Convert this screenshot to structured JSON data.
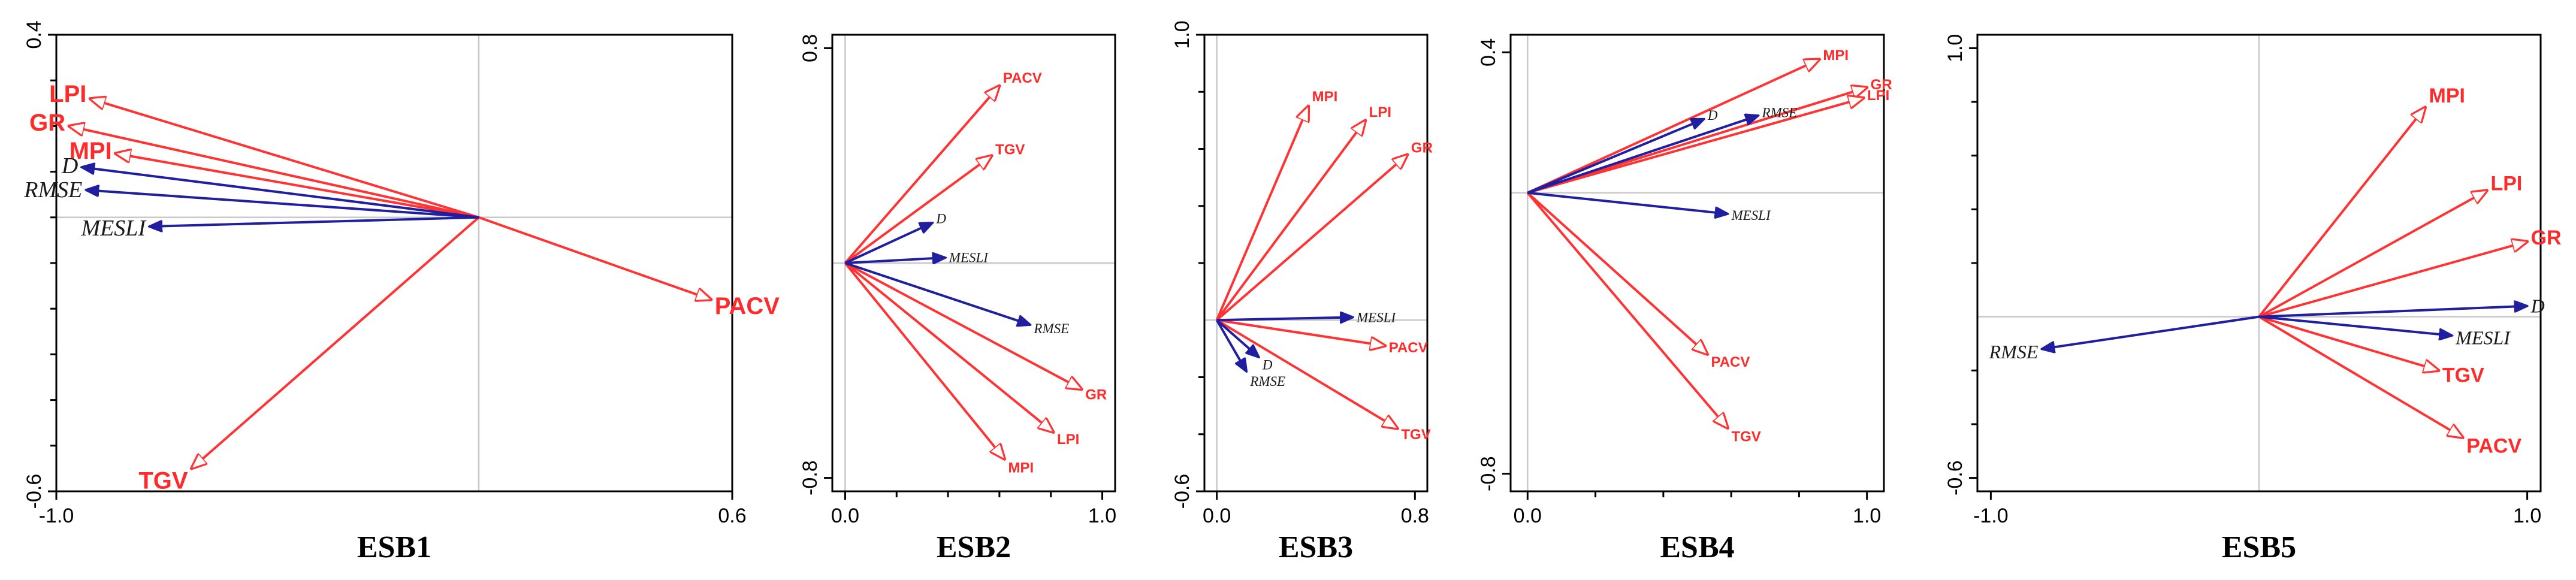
{
  "colors": {
    "response": "#ff2a2a",
    "explanatory": "#1f1fa0",
    "zero_line": "#c8c8c8"
  },
  "chart_data": [
    {
      "type": "biplot",
      "title": "ESB1",
      "xlim": [
        -1.0,
        0.6
      ],
      "ylim": [
        -0.6,
        0.4
      ],
      "xticks": [
        -1.0,
        0.6
      ],
      "xtick_labels": [
        "-1.0",
        "0.6"
      ],
      "yticks": [
        0.4,
        -0.6
      ],
      "ytick_labels": [
        "0.4",
        "-0.6"
      ],
      "minor_yticks": [
        0.3,
        0.2,
        0.1,
        0.0,
        -0.1,
        -0.2,
        -0.3,
        -0.4,
        -0.5
      ],
      "vectors": [
        {
          "name": "LPI",
          "group": "response",
          "x": -0.92,
          "y": 0.26
        },
        {
          "name": "GR",
          "group": "response",
          "x": -0.97,
          "y": 0.2
        },
        {
          "name": "MPI",
          "group": "response",
          "x": -0.86,
          "y": 0.14
        },
        {
          "name": "PACV",
          "group": "response",
          "x": 0.55,
          "y": -0.18
        },
        {
          "name": "TGV",
          "group": "response",
          "x": -0.68,
          "y": -0.55
        },
        {
          "name": "D",
          "group": "explanatory",
          "x": -0.94,
          "y": 0.11
        },
        {
          "name": "RMSE",
          "group": "explanatory",
          "x": -0.93,
          "y": 0.06
        },
        {
          "name": "MESLI",
          "group": "explanatory",
          "x": -0.78,
          "y": -0.02
        }
      ]
    },
    {
      "type": "biplot",
      "title": "ESB2",
      "xlim": [
        -0.05,
        1.05
      ],
      "ylim": [
        -0.85,
        0.85
      ],
      "xticks": [
        0.0,
        1.0
      ],
      "xtick_labels": [
        "0.0",
        "1.0"
      ],
      "yticks": [
        0.8,
        -0.8
      ],
      "ytick_labels": [
        "0.8",
        "-0.8"
      ],
      "minor_xticks": [
        0.2,
        0.4,
        0.6,
        0.8
      ],
      "vectors": [
        {
          "name": "PACV",
          "group": "response",
          "x": 0.6,
          "y": 0.66
        },
        {
          "name": "TGV",
          "group": "response",
          "x": 0.57,
          "y": 0.4
        },
        {
          "name": "GR",
          "group": "response",
          "x": 0.92,
          "y": -0.47
        },
        {
          "name": "LPI",
          "group": "response",
          "x": 0.81,
          "y": -0.63
        },
        {
          "name": "MPI",
          "group": "response",
          "x": 0.62,
          "y": -0.73
        },
        {
          "name": "D",
          "group": "explanatory",
          "x": 0.34,
          "y": 0.15
        },
        {
          "name": "MESLI",
          "group": "explanatory",
          "x": 0.39,
          "y": 0.02
        },
        {
          "name": "RMSE",
          "group": "explanatory",
          "x": 0.72,
          "y": -0.23
        }
      ]
    },
    {
      "type": "biplot",
      "title": "ESB3",
      "xlim": [
        -0.05,
        0.85
      ],
      "ylim": [
        -0.6,
        1.0
      ],
      "xticks": [
        0.0,
        0.8
      ],
      "xtick_labels": [
        "0.0",
        "0.8"
      ],
      "yticks": [
        1.0,
        -0.6
      ],
      "ytick_labels": [
        "1.0",
        "-0.6"
      ],
      "minor_yticks": [
        0.8,
        0.6,
        0.4,
        0.2,
        -0.2,
        -0.4
      ],
      "vectors": [
        {
          "name": "MPI",
          "group": "response",
          "x": 0.37,
          "y": 0.75
        },
        {
          "name": "LPI",
          "group": "response",
          "x": 0.6,
          "y": 0.7
        },
        {
          "name": "GR",
          "group": "response",
          "x": 0.77,
          "y": 0.58
        },
        {
          "name": "PACV",
          "group": "response",
          "x": 0.68,
          "y": -0.09
        },
        {
          "name": "TGV",
          "group": "response",
          "x": 0.73,
          "y": -0.38
        },
        {
          "name": "MESLI",
          "group": "explanatory",
          "x": 0.55,
          "y": 0.01
        },
        {
          "name": "RMSE",
          "group": "explanatory",
          "x": 0.12,
          "y": -0.18
        },
        {
          "name": "D",
          "group": "explanatory",
          "x": 0.17,
          "y": -0.13
        }
      ]
    },
    {
      "type": "biplot",
      "title": "ESB4",
      "xlim": [
        -0.05,
        1.05
      ],
      "ylim": [
        -0.85,
        0.45
      ],
      "xticks": [
        0.0,
        1.0
      ],
      "xtick_labels": [
        "0.0",
        "1.0"
      ],
      "yticks": [
        0.4,
        -0.8
      ],
      "ytick_labels": [
        "0.4",
        "-0.8"
      ],
      "minor_xticks": [
        0.2,
        0.4,
        0.6,
        0.8
      ],
      "vectors": [
        {
          "name": "MPI",
          "group": "response",
          "x": 0.86,
          "y": 0.38
        },
        {
          "name": "GR",
          "group": "response",
          "x": 1.0,
          "y": 0.3
        },
        {
          "name": "LPI",
          "group": "response",
          "x": 0.99,
          "y": 0.27
        },
        {
          "name": "PACV",
          "group": "response",
          "x": 0.53,
          "y": -0.46
        },
        {
          "name": "TGV",
          "group": "response",
          "x": 0.59,
          "y": -0.67
        },
        {
          "name": "D",
          "group": "explanatory",
          "x": 0.52,
          "y": 0.21
        },
        {
          "name": "RMSE",
          "group": "explanatory",
          "x": 0.68,
          "y": 0.22
        },
        {
          "name": "MESLI",
          "group": "explanatory",
          "x": 0.59,
          "y": -0.06
        }
      ]
    },
    {
      "type": "biplot",
      "title": "ESB5",
      "xlim": [
        -1.05,
        1.05
      ],
      "ylim": [
        -0.65,
        1.05
      ],
      "xticks": [
        -1.0,
        1.0
      ],
      "xtick_labels": [
        "-1.0",
        "1.0"
      ],
      "yticks": [
        1.0,
        -0.6
      ],
      "ytick_labels": [
        "1.0",
        "-0.6"
      ],
      "minor_yticks": [
        0.8,
        0.6,
        0.4,
        0.2,
        -0.2,
        -0.4
      ],
      "vectors": [
        {
          "name": "MPI",
          "group": "response",
          "x": 0.62,
          "y": 0.78
        },
        {
          "name": "LPI",
          "group": "response",
          "x": 0.85,
          "y": 0.47
        },
        {
          "name": "GR",
          "group": "response",
          "x": 1.0,
          "y": 0.28
        },
        {
          "name": "TGV",
          "group": "response",
          "x": 0.67,
          "y": -0.2
        },
        {
          "name": "PACV",
          "group": "response",
          "x": 0.76,
          "y": -0.45
        },
        {
          "name": "D",
          "group": "explanatory",
          "x": 1.0,
          "y": 0.04
        },
        {
          "name": "MESLI",
          "group": "explanatory",
          "x": 0.72,
          "y": -0.07
        },
        {
          "name": "RMSE",
          "group": "explanatory",
          "x": -0.81,
          "y": -0.12
        }
      ]
    }
  ]
}
